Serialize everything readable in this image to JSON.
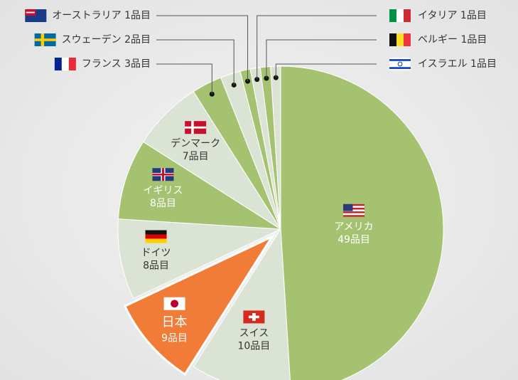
{
  "chart_data": {
    "type": "pie",
    "categories": [
      "アメリカ",
      "スイス",
      "日本",
      "ドイツ",
      "イギリス",
      "デンマーク",
      "フランス",
      "スウェーデン",
      "オーストラリア",
      "イタリア",
      "ベルギー",
      "イスラエル"
    ],
    "values": [
      49,
      10,
      9,
      8,
      8,
      7,
      3,
      2,
      1,
      1,
      1,
      1
    ],
    "value_labels": [
      "49品目",
      "10品目",
      "9品目",
      "8品目",
      "8品目",
      "7品目",
      "3品目",
      "2品目",
      "1品目",
      "1品目",
      "1品目",
      "1品目"
    ],
    "colors": [
      "#a5c270",
      "#dbe4d4",
      "#f07c38",
      "#dbe4d4",
      "#a5c270",
      "#dbe4d4",
      "#a5c270",
      "#dbe4d4",
      "#a5c270",
      "#dbe4d4",
      "#a5c270",
      "#dbe4d4"
    ],
    "exploded": "日本"
  }
}
